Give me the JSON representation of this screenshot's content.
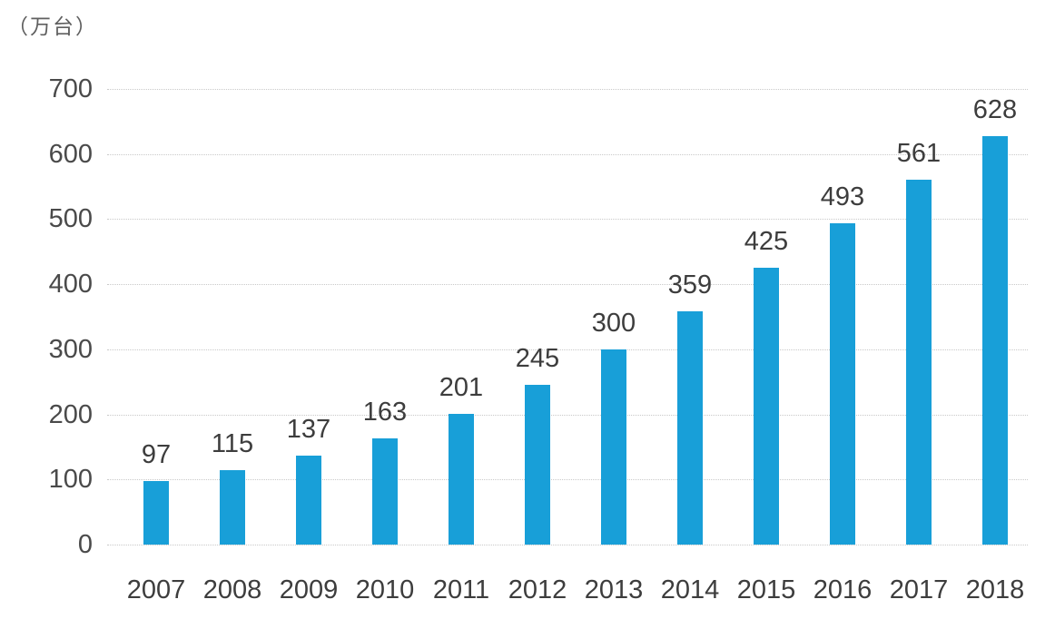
{
  "unit_label": "（万台）",
  "chart_data": {
    "type": "bar",
    "title": "",
    "unit_label": "（万台）",
    "categories": [
      "2007",
      "2008",
      "2009",
      "2010",
      "2011",
      "2012",
      "2013",
      "2014",
      "2015",
      "2016",
      "2017",
      "2018"
    ],
    "values": [
      97,
      115,
      137,
      163,
      201,
      245,
      300,
      359,
      425,
      493,
      561,
      628
    ],
    "xlabel": "",
    "ylabel": "（万台）",
    "ylim": [
      0,
      700
    ],
    "yticks": [
      0,
      100,
      200,
      300,
      400,
      500,
      600,
      700
    ],
    "grid": "horizontal-dotted",
    "legend": "none",
    "bar_color": "#189fd8",
    "value_label_color": "#3d3d3d",
    "axis_label_color": "#4a4a4a",
    "gridline_color": "#c9c9c9"
  }
}
